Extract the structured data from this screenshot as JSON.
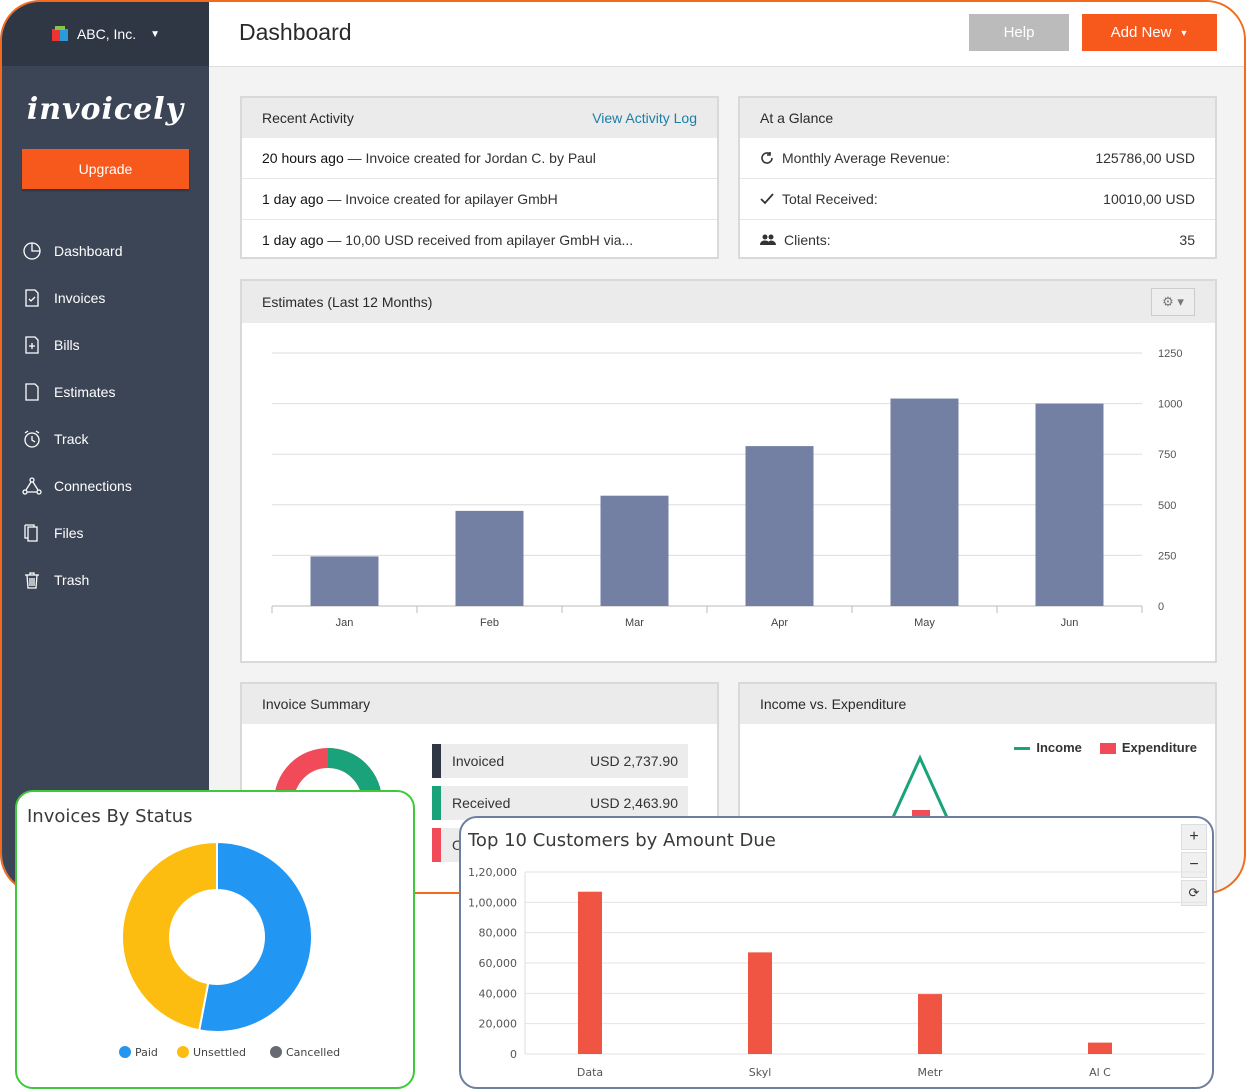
{
  "sidebar": {
    "company": "ABC, Inc.",
    "logo": "invoicely",
    "upgrade_label": "Upgrade",
    "items": [
      {
        "label": "Dashboard",
        "icon": "pie-chart-icon"
      },
      {
        "label": "Invoices",
        "icon": "invoice-icon"
      },
      {
        "label": "Bills",
        "icon": "bill-icon"
      },
      {
        "label": "Estimates",
        "icon": "document-icon"
      },
      {
        "label": "Track",
        "icon": "clock-icon"
      },
      {
        "label": "Connections",
        "icon": "network-icon"
      },
      {
        "label": "Files",
        "icon": "files-icon"
      },
      {
        "label": "Trash",
        "icon": "trash-icon"
      }
    ]
  },
  "header": {
    "title": "Dashboard",
    "help_label": "Help",
    "add_new_label": "Add New"
  },
  "recent_activity": {
    "title": "Recent Activity",
    "link": "View Activity Log",
    "items": [
      {
        "when": "20 hours ago",
        "text": " — Invoice created for Jordan C. by Paul"
      },
      {
        "when": "1 day ago",
        "text": " — Invoice created for apilayer GmbH"
      },
      {
        "when": "1 day ago",
        "text": " — 10,00 USD received from apilayer GmbH via..."
      }
    ]
  },
  "at_a_glance": {
    "title": "At a Glance",
    "items": [
      {
        "label": "Monthly Average Revenue:",
        "value": "125786,00 USD",
        "icon": "refresh-icon"
      },
      {
        "label": "Total Received:",
        "value": "10010,00 USD",
        "icon": "check-icon"
      },
      {
        "label": "Clients:",
        "value": "35",
        "icon": "users-icon"
      }
    ]
  },
  "estimates": {
    "title": "Estimates (Last 12 Months)"
  },
  "invoice_summary": {
    "title": "Invoice Summary",
    "rows": [
      {
        "label": "Invoiced",
        "value": "USD 2,737.90",
        "color": "#2f3644"
      },
      {
        "label": "Received",
        "value": "USD 2,463.90",
        "color": "#1aa37a"
      },
      {
        "label": "O",
        "value": "",
        "color": "#f14b5a"
      }
    ]
  },
  "income_expenditure": {
    "title": "Income vs. Expenditure",
    "legend": [
      {
        "label": "Income",
        "color": "#1aa37a"
      },
      {
        "label": "Expenditure",
        "color": "#f14b5a"
      }
    ]
  },
  "invoices_by_status": {
    "title": "Invoices By Status"
  },
  "top_customers": {
    "title": "Top 10 Customers by Amount Due",
    "controls": [
      "+",
      "−",
      "⟳"
    ]
  },
  "colors": {
    "accent": "#f7591d",
    "sidebar": "#3c4556",
    "bar": "#7380a3"
  },
  "chart_data": [
    {
      "type": "bar",
      "title": "Estimates (Last 12 Months)",
      "categories": [
        "Jan",
        "Feb",
        "Mar",
        "Apr",
        "May",
        "Jun"
      ],
      "values": [
        245,
        470,
        545,
        790,
        1025,
        1000
      ],
      "ylim": [
        0,
        1250
      ],
      "yticks": [
        0,
        250,
        500,
        750,
        1000,
        1250
      ],
      "grid": true
    },
    {
      "type": "pie",
      "title": "Invoices By Status",
      "categories": [
        "Paid",
        "Unsettled",
        "Cancelled"
      ],
      "values": [
        53,
        47,
        0
      ],
      "colors": [
        "#2196f3",
        "#fdbd10",
        "#676a72"
      ],
      "legend": "bottom"
    },
    {
      "type": "bar",
      "title": "Top 10 Customers by Amount Due",
      "categories": [
        "Data",
        "Skyl",
        "Metr",
        "Al C"
      ],
      "values": [
        107000,
        67000,
        39500,
        7500
      ],
      "ylim": [
        0,
        120000
      ],
      "yticks": [
        "0",
        "20,000",
        "40,000",
        "60,000",
        "80,000",
        "1,00,000",
        "1,20,000"
      ],
      "grid": true
    }
  ]
}
